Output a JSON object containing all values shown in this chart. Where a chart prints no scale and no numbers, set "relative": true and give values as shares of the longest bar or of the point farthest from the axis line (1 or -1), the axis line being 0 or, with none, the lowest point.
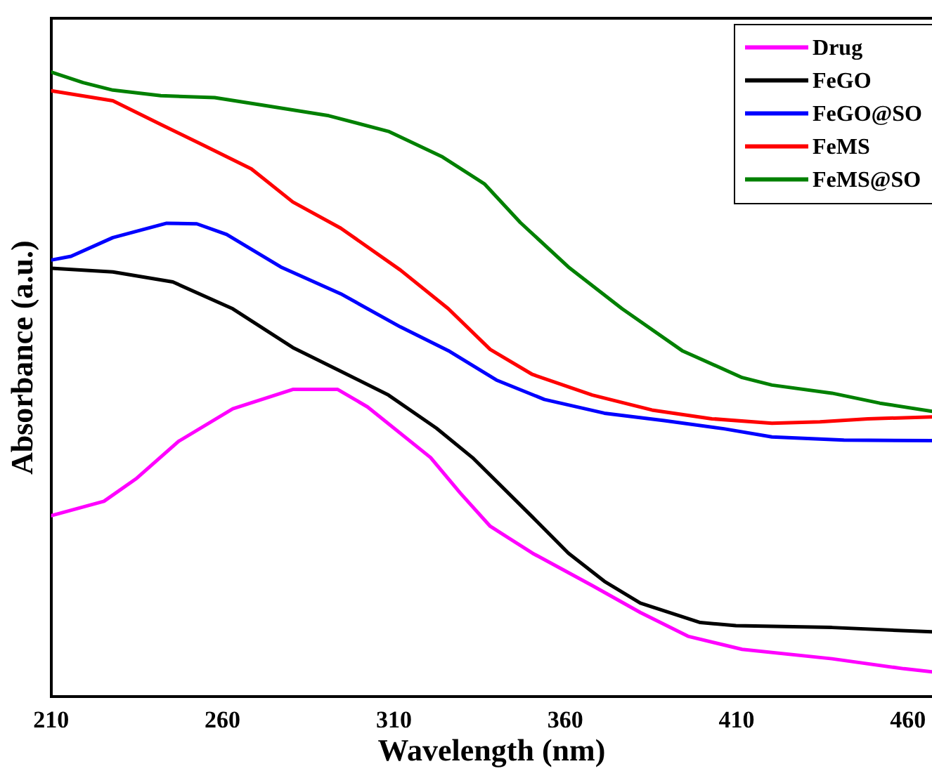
{
  "chart_data": {
    "type": "line",
    "relative": true,
    "xlabel": "Wavelength (nm)",
    "ylabel": "Absorbance (a.u.)",
    "xlim": [
      210,
      467
    ],
    "xticks": [
      210,
      260,
      310,
      360,
      410,
      460
    ],
    "grid": false,
    "legend": "top right",
    "marker": "none",
    "line_style": "solid",
    "series": [
      {
        "name": "Drug",
        "color": "#ff00ff",
        "x": [
          210,
          225.4,
          235,
          247.2,
          263,
          280.5,
          293.6,
          302.3,
          320.7,
          329.4,
          338.1,
          350.4,
          367.9,
          381.9,
          395.8,
          411.6,
          437.8,
          458.8,
          467
        ],
        "values": [
          0.29,
          0.313,
          0.35,
          0.409,
          0.461,
          0.492,
          0.492,
          0.464,
          0.383,
          0.326,
          0.273,
          0.23,
          0.178,
          0.135,
          0.097,
          0.076,
          0.061,
          0.045,
          0.04
        ]
      },
      {
        "name": "FeGO",
        "color": "#000000",
        "x": [
          210,
          228,
          245.5,
          263,
          280.5,
          294.5,
          308.4,
          322.4,
          332.9,
          350.4,
          360.9,
          371.4,
          381.9,
          399.4,
          409.8,
          437.8,
          467
        ],
        "values": [
          0.686,
          0.68,
          0.664,
          0.621,
          0.559,
          0.521,
          0.483,
          0.43,
          0.383,
          0.288,
          0.23,
          0.185,
          0.15,
          0.119,
          0.114,
          0.111,
          0.104
        ]
      },
      {
        "name": "FeGO@SO",
        "color": "#0000ff",
        "x": [
          210,
          215.8,
          228,
          243.7,
          252.5,
          261.2,
          277,
          294.5,
          311.9,
          325.9,
          339.9,
          353.9,
          371.4,
          388.9,
          406.3,
          420.3,
          441.3,
          467
        ],
        "values": [
          0.699,
          0.705,
          0.735,
          0.758,
          0.757,
          0.74,
          0.688,
          0.645,
          0.592,
          0.554,
          0.507,
          0.476,
          0.454,
          0.442,
          0.429,
          0.416,
          0.411,
          0.41
        ]
      },
      {
        "name": "FeMS",
        "color": "#ff0000",
        "x": [
          210,
          228,
          242,
          254.4,
          268.4,
          280.5,
          294.5,
          311.9,
          325.9,
          338.1,
          350.4,
          367.9,
          385.3,
          402.8,
          420.3,
          434.3,
          448.3,
          467
        ],
        "values": [
          0.97,
          0.954,
          0.916,
          0.883,
          0.845,
          0.792,
          0.75,
          0.683,
          0.621,
          0.556,
          0.516,
          0.483,
          0.459,
          0.445,
          0.438,
          0.44,
          0.445,
          0.448
        ]
      },
      {
        "name": "FeMS@SO",
        "color": "#008000",
        "x": [
          210,
          219.3,
          228,
          242,
          257.7,
          271.7,
          291,
          308.4,
          324.2,
          336.4,
          346.9,
          360.9,
          376.6,
          394.1,
          411.6,
          420.3,
          437.8,
          451.8,
          467
        ],
        "values": [
          1.0,
          0.983,
          0.971,
          0.962,
          0.959,
          0.947,
          0.93,
          0.905,
          0.864,
          0.821,
          0.759,
          0.688,
          0.621,
          0.554,
          0.511,
          0.499,
          0.486,
          0.47,
          0.457
        ]
      }
    ]
  }
}
